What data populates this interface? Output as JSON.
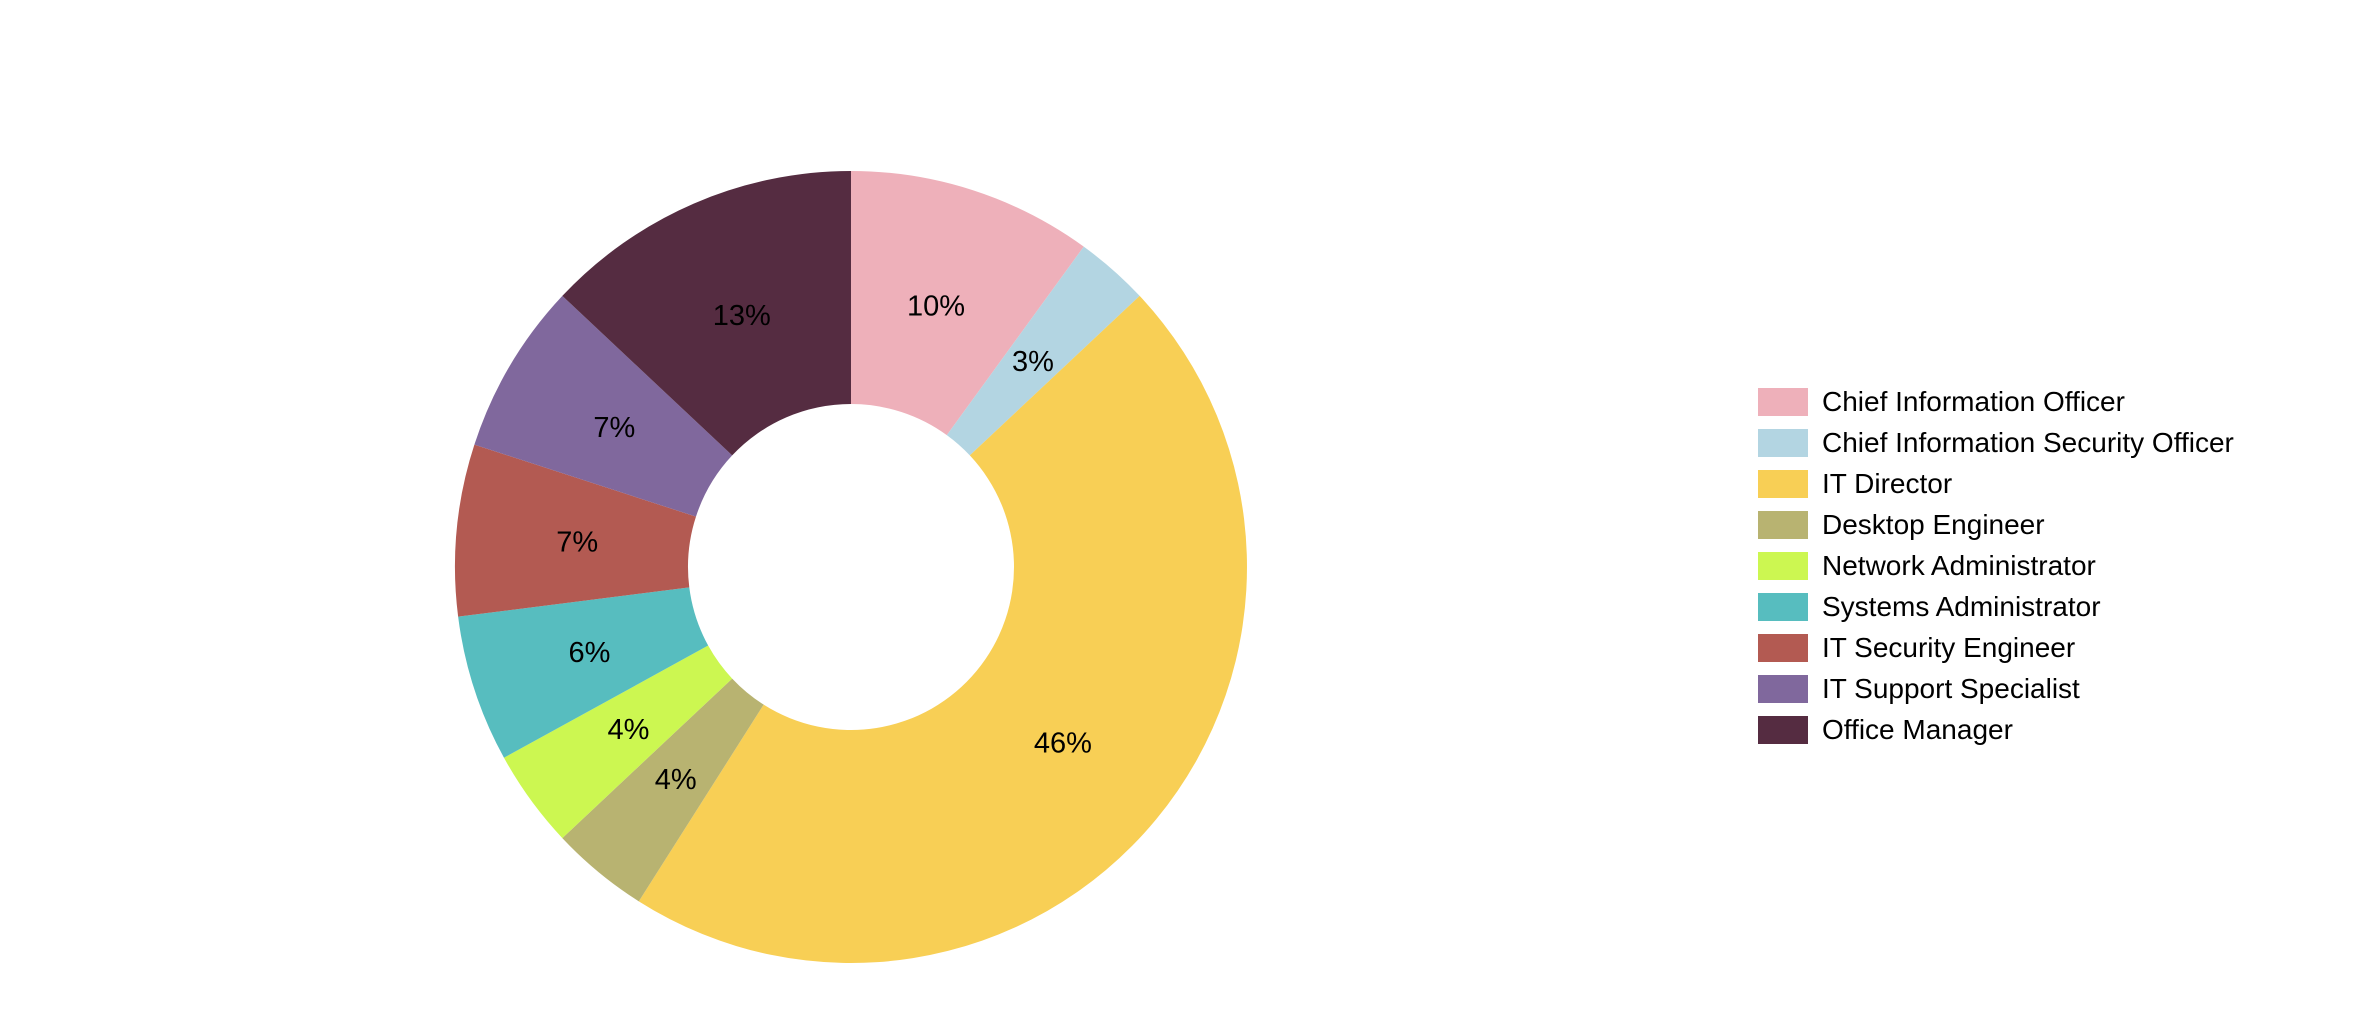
{
  "chart_data": {
    "type": "pie",
    "subtype": "donut",
    "title": "",
    "labels": [
      "Chief Information Officer",
      "Chief Information Security Officer",
      "IT Director",
      "Desktop Engineer",
      "Network Administrator",
      "Systems Administrator",
      "IT Security Engineer",
      "IT Support Specialist",
      "Office Manager"
    ],
    "values": [
      10,
      3,
      46,
      4,
      4,
      6,
      7,
      7,
      13
    ],
    "slice_labels": [
      "10%",
      "3%",
      "46%",
      "4%",
      "4%",
      "6%",
      "7%",
      "7%",
      "13%"
    ],
    "colors": [
      "#eeb0ba",
      "#b3d5e2",
      "#f8cf55",
      "#b8b371",
      "#ccf751",
      "#57bdbf",
      "#b35a52",
      "#80689d",
      "#552c41"
    ],
    "start_angle_deg_from_top_clockwise": 0,
    "direction": "clockwise",
    "donut_hole_ratio": 0.41,
    "legend_position": "right",
    "label_color": "#000000",
    "background": "#ffffff"
  }
}
